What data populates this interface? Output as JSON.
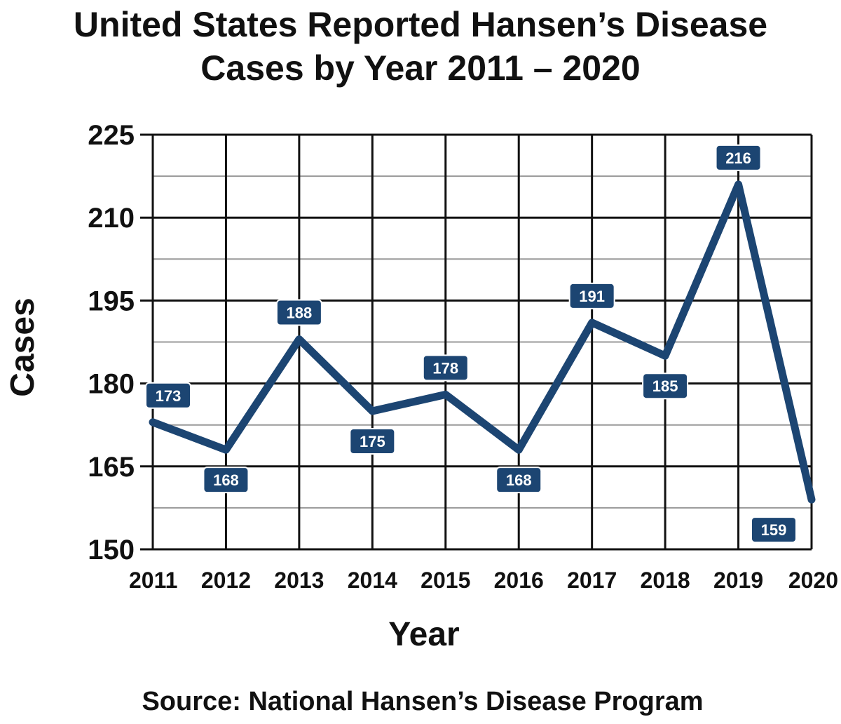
{
  "chart_data": {
    "type": "line",
    "title_lines": [
      "United States Reported Hansen’s Disease",
      "Cases by Year 2011 – 2020"
    ],
    "xlabel": "Year",
    "ylabel": "Cases",
    "source": "Source: National Hansen’s Disease Program",
    "x": [
      "2011",
      "2012",
      "2013",
      "2014",
      "2015",
      "2016",
      "2017",
      "2018",
      "2019",
      "2020"
    ],
    "series": [
      {
        "values": [
          173,
          168,
          188,
          175,
          178,
          168,
          191,
          185,
          216,
          159
        ]
      }
    ],
    "data_labels": [
      "173",
      "168",
      "188",
      "175",
      "178",
      "168",
      "191",
      "185",
      "216",
      "159"
    ],
    "ylim": [
      150,
      225
    ],
    "yticks": [
      150,
      165,
      180,
      195,
      210,
      225
    ],
    "yminor_step": 7.5,
    "grid": true,
    "legend": "none",
    "colors": {
      "line": "#1c4572",
      "grid_major": "#111111",
      "grid_minor": "#999999",
      "label_bg": "#1c4572",
      "label_text": "#ffffff"
    }
  }
}
